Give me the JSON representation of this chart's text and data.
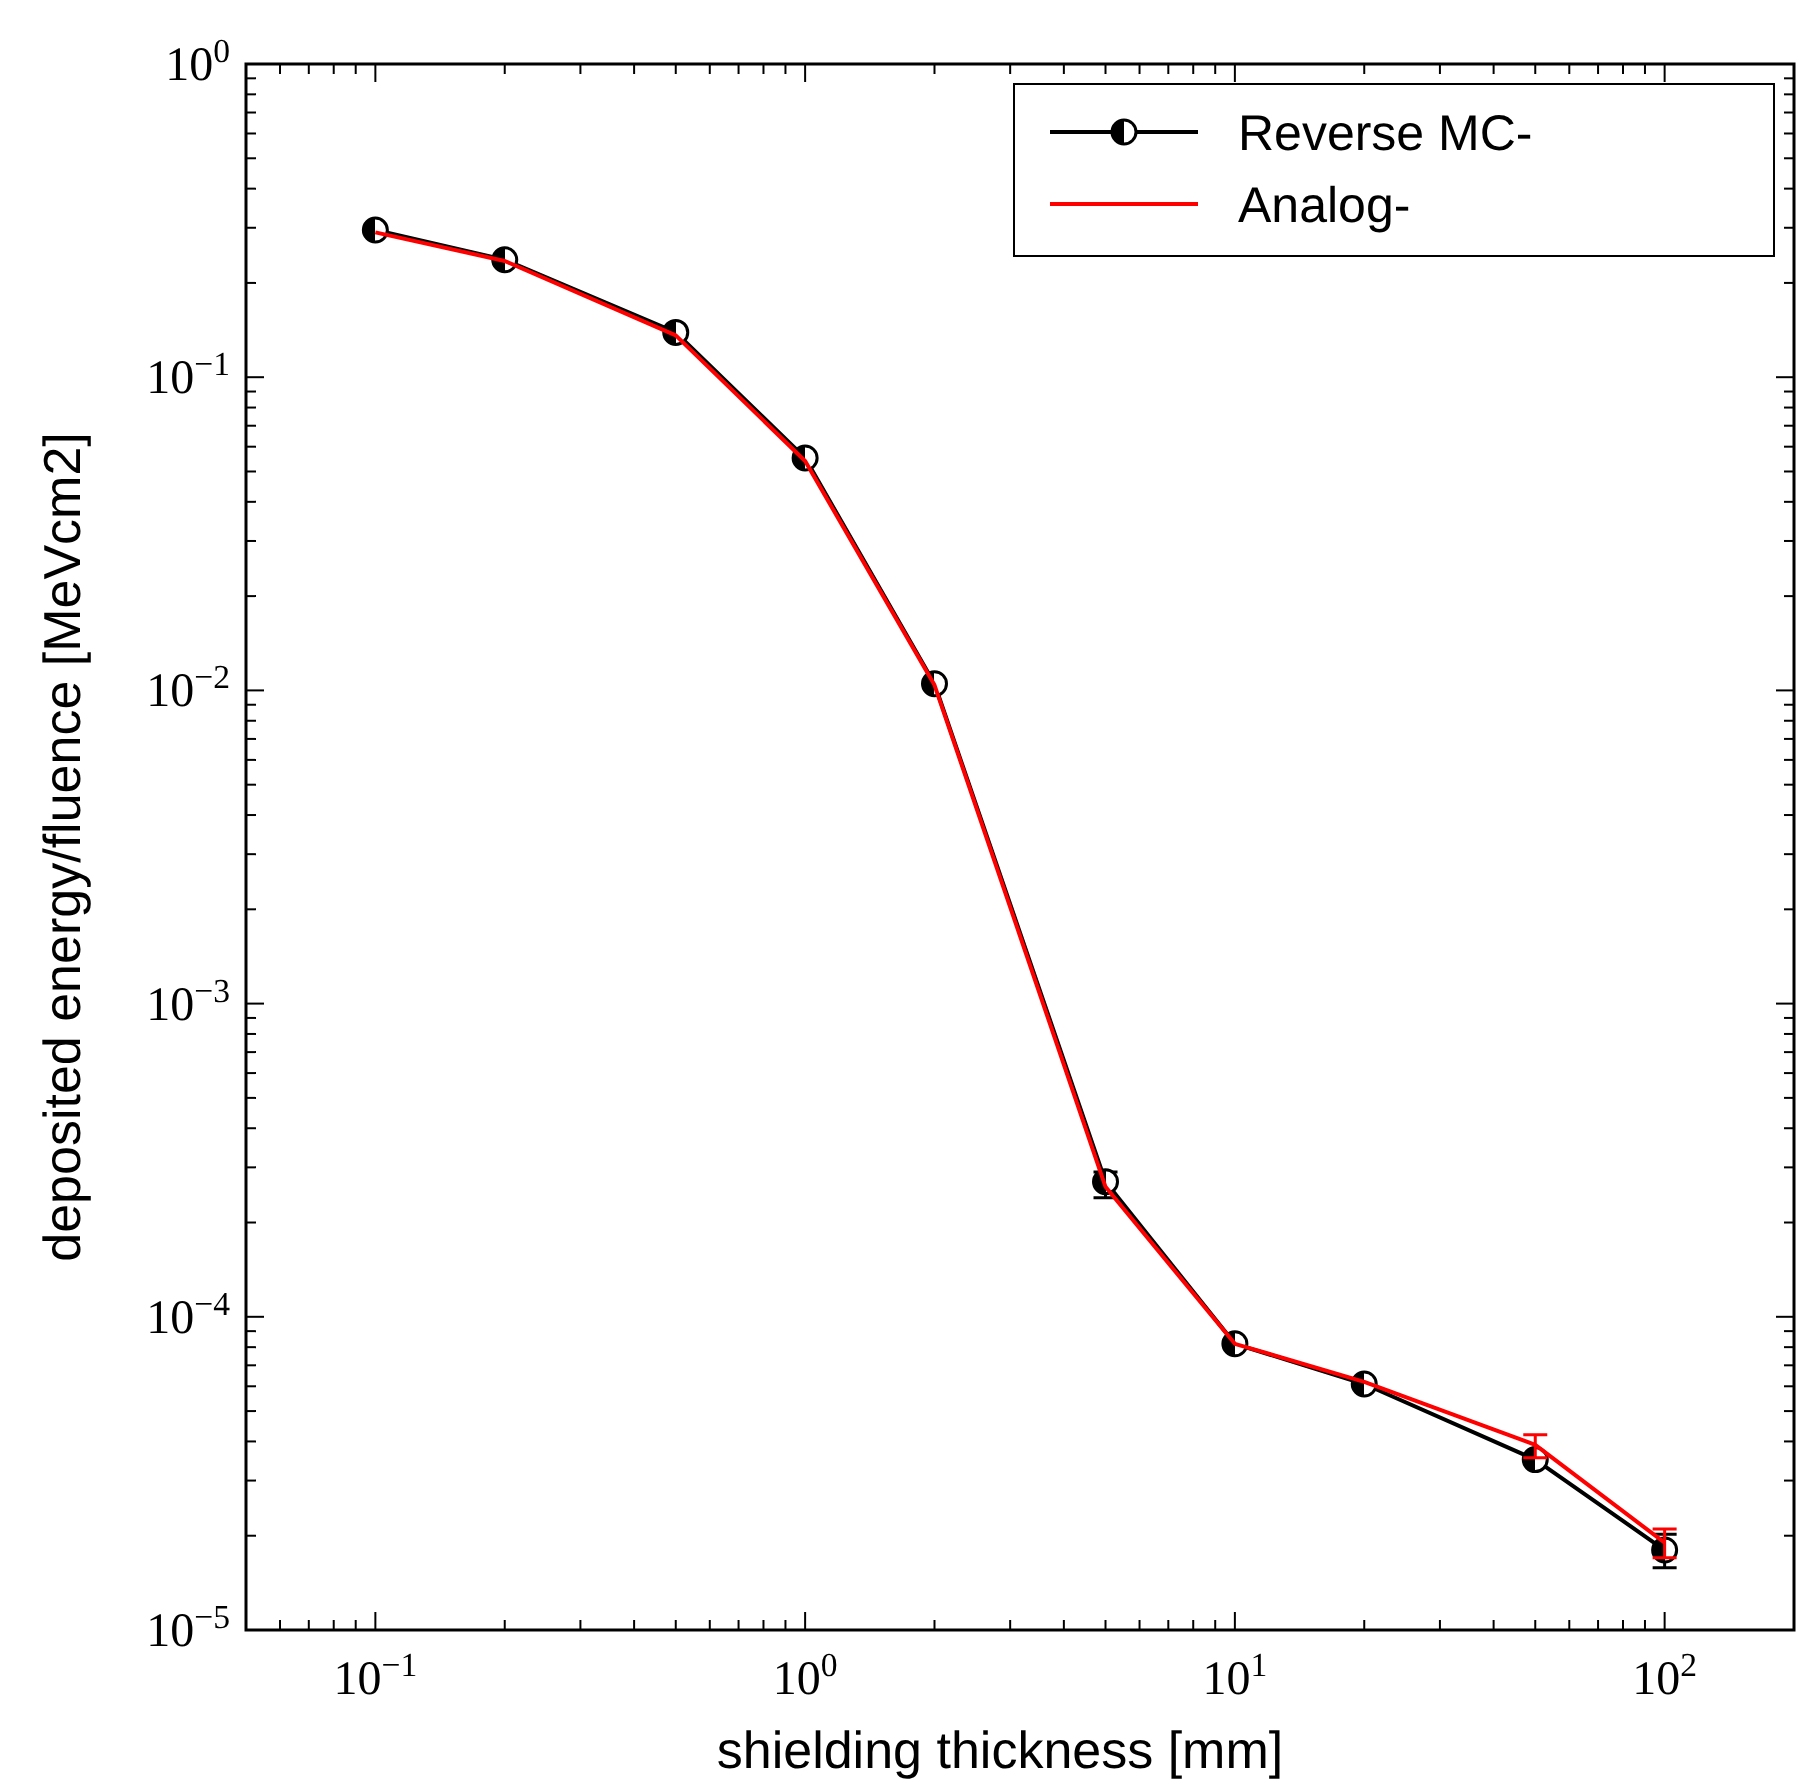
{
  "chart_data": {
    "type": "line",
    "xlabel": "shielding thickness [mm]",
    "ylabel": "deposited energy/fluence [MeVcm2]",
    "log": "xy",
    "legend": "top right",
    "grid": false,
    "x": [
      0.1,
      0.2,
      0.5,
      1,
      2,
      5,
      10,
      20,
      50,
      100
    ],
    "xlim": [
      0.05,
      200
    ],
    "ylim": [
      1e-05,
      1
    ],
    "xticks": [
      {
        "value": 0.05,
        "label": null
      },
      {
        "value": 0.06,
        "label": null
      },
      {
        "value": 0.07,
        "label": null
      },
      {
        "value": 0.08,
        "label": null
      },
      {
        "value": 0.09,
        "label": null
      },
      {
        "value": 0.1,
        "label": "10$^{−1}$"
      },
      {
        "value": 0.2,
        "label": null
      },
      {
        "value": 0.3,
        "label": null
      },
      {
        "value": 0.4,
        "label": null
      },
      {
        "value": 0.5,
        "label": null
      },
      {
        "value": 0.6,
        "label": null
      },
      {
        "value": 0.7,
        "label": null
      },
      {
        "value": 0.8,
        "label": null
      },
      {
        "value": 0.9,
        "label": null
      },
      {
        "value": 1,
        "label": "10$^{0}$"
      },
      {
        "value": 2,
        "label": null
      },
      {
        "value": 3,
        "label": null
      },
      {
        "value": 4,
        "label": null
      },
      {
        "value": 5,
        "label": null
      },
      {
        "value": 6,
        "label": null
      },
      {
        "value": 7,
        "label": null
      },
      {
        "value": 8,
        "label": null
      },
      {
        "value": 9,
        "label": null
      },
      {
        "value": 10,
        "label": "10$^{1}$"
      },
      {
        "value": 20,
        "label": null
      },
      {
        "value": 30,
        "label": null
      },
      {
        "value": 40,
        "label": null
      },
      {
        "value": 50,
        "label": null
      },
      {
        "value": 60,
        "label": null
      },
      {
        "value": 70,
        "label": null
      },
      {
        "value": 80,
        "label": null
      },
      {
        "value": 90,
        "label": null
      },
      {
        "value": 100,
        "label": "10$^{2}$"
      },
      {
        "value": 200,
        "label": null
      }
    ],
    "yticks": [
      {
        "value": 1e-05,
        "label": "10$^{−5}$"
      },
      {
        "value": 2e-05,
        "label": null
      },
      {
        "value": 3e-05,
        "label": null
      },
      {
        "value": 4e-05,
        "label": null
      },
      {
        "value": 5e-05,
        "label": null
      },
      {
        "value": 6e-05,
        "label": null
      },
      {
        "value": 7e-05,
        "label": null
      },
      {
        "value": 8e-05,
        "label": null
      },
      {
        "value": 9e-05,
        "label": null
      },
      {
        "value": 0.0001,
        "label": "10$^{−4}$"
      },
      {
        "value": 0.0002,
        "label": null
      },
      {
        "value": 0.0003,
        "label": null
      },
      {
        "value": 0.0004,
        "label": null
      },
      {
        "value": 0.0005,
        "label": null
      },
      {
        "value": 0.0006,
        "label": null
      },
      {
        "value": 0.0007,
        "label": null
      },
      {
        "value": 0.0008,
        "label": null
      },
      {
        "value": 0.0009,
        "label": null
      },
      {
        "value": 0.001,
        "label": "10$^{−3}$"
      },
      {
        "value": 0.002,
        "label": null
      },
      {
        "value": 0.003,
        "label": null
      },
      {
        "value": 0.004,
        "label": null
      },
      {
        "value": 0.005,
        "label": null
      },
      {
        "value": 0.006,
        "label": null
      },
      {
        "value": 0.007,
        "label": null
      },
      {
        "value": 0.008,
        "label": null
      },
      {
        "value": 0.009,
        "label": null
      },
      {
        "value": 0.01,
        "label": "10$^{−2}$"
      },
      {
        "value": 0.02,
        "label": null
      },
      {
        "value": 0.03,
        "label": null
      },
      {
        "value": 0.04,
        "label": null
      },
      {
        "value": 0.05,
        "label": null
      },
      {
        "value": 0.06,
        "label": null
      },
      {
        "value": 0.07,
        "label": null
      },
      {
        "value": 0.08,
        "label": null
      },
      {
        "value": 0.09,
        "label": null
      },
      {
        "value": 0.1,
        "label": "10$^{−1}$"
      },
      {
        "value": 0.2,
        "label": null
      },
      {
        "value": 0.3,
        "label": null
      },
      {
        "value": 0.4,
        "label": null
      },
      {
        "value": 0.5,
        "label": null
      },
      {
        "value": 0.6,
        "label": null
      },
      {
        "value": 0.7,
        "label": null
      },
      {
        "value": 0.8,
        "label": null
      },
      {
        "value": 0.9,
        "label": null
      },
      {
        "value": 1,
        "label": "10$^{0}$"
      }
    ],
    "series": [
      {
        "name": "Reverse MC-",
        "color": "#000000",
        "marker": "circle",
        "values": [
          0.295,
          0.237,
          0.139,
          0.0552,
          0.0105,
          0.00027,
          8.2e-05,
          6.1e-05,
          3.5e-05,
          1.8e-05
        ],
        "errors": [
          null,
          null,
          null,
          null,
          null,
          [
            0.00024,
            0.00029
          ],
          null,
          null,
          null,
          [
            1.58e-05,
            2.02e-05
          ]
        ]
      },
      {
        "name": "Analog-",
        "color": "#ff0000",
        "marker": "none",
        "values": [
          0.29,
          0.235,
          0.136,
          0.054,
          0.0104,
          0.00026,
          8.2e-05,
          6.2e-05,
          3.9e-05,
          1.9e-05
        ],
        "errors": [
          null,
          null,
          null,
          null,
          null,
          null,
          null,
          null,
          [
            3.55e-05,
            4.2e-05
          ],
          [
            1.7e-05,
            2.1e-05
          ]
        ]
      }
    ]
  }
}
